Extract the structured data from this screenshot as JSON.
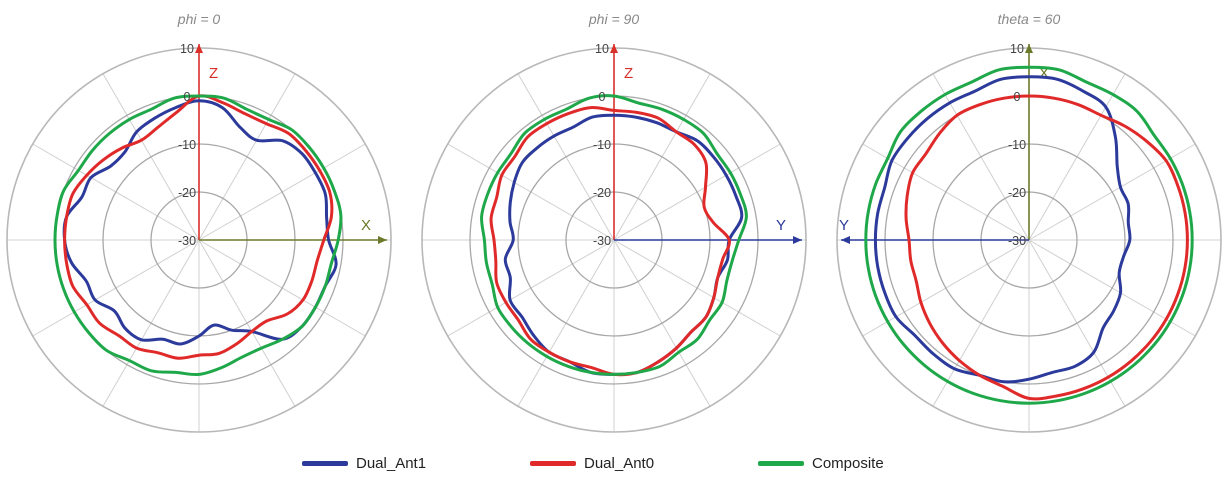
{
  "chart_data": [
    {
      "type": "polar",
      "title": "phi = 0",
      "r_ticks": [
        10,
        0,
        -10,
        -20,
        -30
      ],
      "r_range": [
        -30,
        10
      ],
      "grid": true,
      "axes": [
        {
          "label": "Z",
          "direction": "up",
          "color": "#d9302a"
        },
        {
          "label": "X",
          "direction": "right",
          "color": "#6b7a2a"
        }
      ],
      "series": [
        {
          "name": "Dual_Ant1",
          "color": "#2b3a9b",
          "values": [
            -1,
            -2,
            -5,
            -6,
            -3,
            -2,
            -2,
            -2,
            -3,
            -3,
            -1,
            -2,
            -2,
            -2,
            -3,
            -8,
            -10,
            -12,
            -10,
            -8,
            -8,
            -6,
            -6,
            -7,
            -5,
            -5,
            -3,
            -2,
            -2,
            -4,
            -4,
            -6,
            -6,
            -4,
            -3,
            -2
          ]
        },
        {
          "name": "Dual_Ant0",
          "color": "#e02a2a",
          "values": [
            0,
            -1,
            -2,
            -2,
            -1,
            -1,
            -1,
            -1,
            -2,
            -4,
            -5,
            -5,
            -5,
            -6,
            -8,
            -8,
            -7,
            -6,
            -6,
            -5,
            -5,
            -4,
            -4,
            -3,
            -3,
            -2,
            -2,
            -2,
            -2,
            -2,
            -3,
            -4,
            -5,
            -6,
            -5,
            -3
          ]
        },
        {
          "name": "Composite",
          "color": "#1fa84a",
          "values": [
            0,
            0,
            -1,
            -1,
            0,
            0,
            0,
            0,
            0,
            -1,
            -2,
            -2,
            -2,
            -2,
            -3,
            -4,
            -4,
            -3,
            -2,
            -2,
            -1,
            -1,
            0,
            0,
            0,
            0,
            0,
            0,
            0,
            0,
            -1,
            -1,
            -1,
            -1,
            -1,
            0
          ]
        }
      ]
    },
    {
      "type": "polar",
      "title": "phi = 90",
      "r_ticks": [
        10,
        0,
        -10,
        -20,
        -30
      ],
      "r_range": [
        -30,
        10
      ],
      "grid": true,
      "axes": [
        {
          "label": "Z",
          "direction": "up",
          "color": "#d9302a"
        },
        {
          "label": "Y",
          "direction": "right",
          "color": "#2b3a9b"
        }
      ],
      "series": [
        {
          "name": "Dual_Ant1",
          "color": "#2b3a9b",
          "values": [
            -4,
            -4,
            -4,
            -4,
            -3,
            -3,
            -3,
            -3,
            -3,
            -6,
            -6,
            -7,
            -6,
            -5,
            -5,
            -4,
            -3,
            -2,
            -2,
            -2,
            -3,
            -3,
            -4,
            -5,
            -5,
            -7,
            -7,
            -9,
            -8,
            -7,
            -6,
            -5,
            -5,
            -5,
            -5,
            -4
          ]
        },
        {
          "name": "Dual_Ant0",
          "color": "#e02a2a",
          "values": [
            -3,
            -3,
            -3,
            -4,
            -4,
            -5,
            -8,
            -10,
            -9,
            -6,
            -7,
            -7,
            -6,
            -5,
            -5,
            -4,
            -3,
            -2,
            -2,
            -3,
            -3,
            -3,
            -3,
            -4,
            -4,
            -4,
            -5,
            -5,
            -4,
            -4,
            -3,
            -3,
            -2,
            -2,
            -2,
            -2
          ]
        },
        {
          "name": "Composite",
          "color": "#1fa84a",
          "values": [
            0,
            -1,
            -1,
            -1,
            -1,
            -2,
            -2,
            -2,
            -2,
            -4,
            -5,
            -5,
            -4,
            -4,
            -3,
            -3,
            -2,
            -2,
            -2,
            -2,
            -2,
            -2,
            -2,
            -2,
            -2,
            -3,
            -3,
            -3,
            -2,
            -2,
            -2,
            -2,
            -1,
            -1,
            -1,
            0
          ]
        }
      ]
    },
    {
      "type": "polar",
      "title": "theta = 60",
      "r_ticks": [
        10,
        0,
        -10,
        -20,
        -30
      ],
      "r_range": [
        -30,
        10
      ],
      "grid": true,
      "axes": [
        {
          "label": "X",
          "direction": "up",
          "color": "#6b7a2a"
        },
        {
          "label": "Y",
          "direction": "left",
          "color": "#2b3a9b"
        }
      ],
      "series": [
        {
          "name": "Dual_Ant1",
          "color": "#2b3a9b",
          "values": [
            4,
            4,
            3,
            2,
            -2,
            -6,
            -8,
            -8,
            -9,
            -9,
            -10,
            -10,
            -8,
            -7,
            -6,
            -3,
            -2,
            -2,
            -1,
            0,
            0,
            1,
            1,
            1,
            2,
            2,
            2,
            2,
            2,
            2,
            3,
            3,
            3,
            3,
            3,
            4
          ]
        },
        {
          "name": "Dual_Ant0",
          "color": "#e02a2a",
          "values": [
            0,
            0,
            0,
            0,
            1,
            2,
            3,
            3,
            3,
            3,
            3,
            3,
            3,
            3,
            3,
            3,
            3,
            3,
            3,
            1,
            0,
            -1,
            -2,
            -3,
            -4,
            -5,
            -5,
            -5,
            -4,
            -3,
            -2,
            -2,
            -1,
            0,
            0,
            0
          ]
        },
        {
          "name": "Composite",
          "color": "#1fa84a",
          "values": [
            6,
            6,
            5,
            5,
            5,
            4,
            4,
            4,
            4,
            4,
            4,
            4,
            4,
            4,
            4,
            4,
            4,
            4,
            4,
            4,
            4,
            4,
            4,
            4,
            4,
            4,
            4,
            4,
            4,
            4,
            4,
            5,
            5,
            5,
            5,
            6
          ]
        }
      ]
    }
  ],
  "legend": [
    {
      "label": "Dual_Ant1",
      "color": "#2b3a9b"
    },
    {
      "label": "Dual_Ant0",
      "color": "#e02a2a"
    },
    {
      "label": "Composite",
      "color": "#1fa84a"
    }
  ]
}
